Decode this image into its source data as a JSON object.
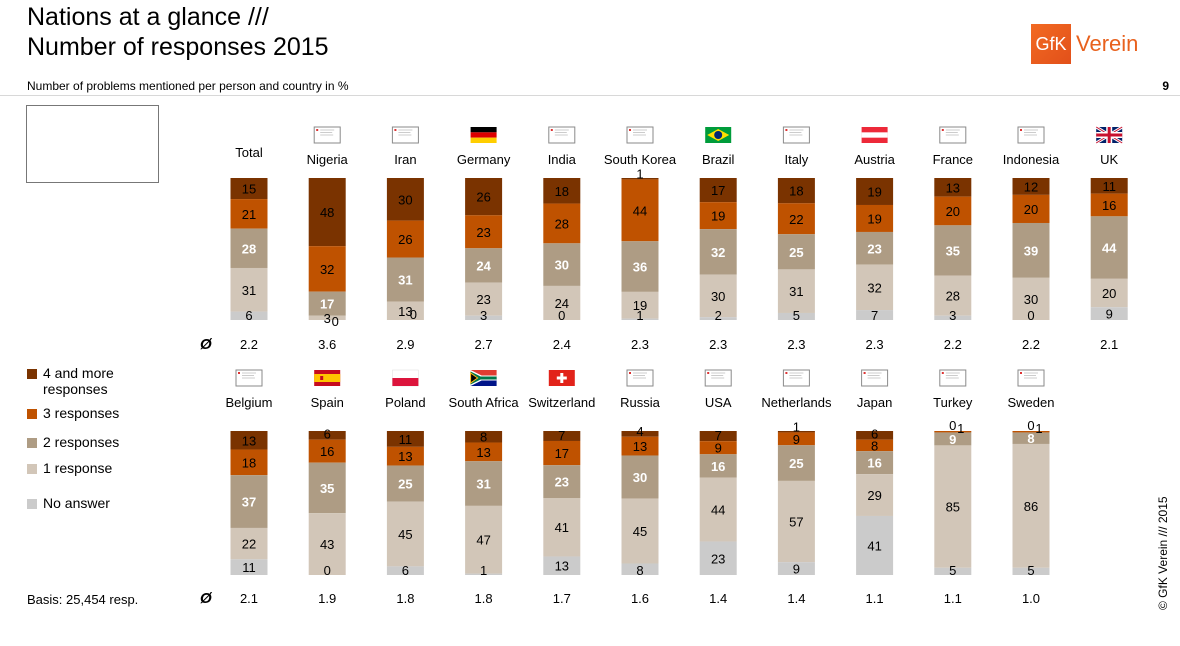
{
  "header": {
    "title_line1": "Nations at a glance ///",
    "title_line2": "Number of responses 2015",
    "subtitle": "Number of problems mentioned per person and country in %",
    "page_number": "9",
    "logo_mark": "GfK",
    "logo_text": "Verein"
  },
  "legend": {
    "items": [
      {
        "label": "4 and more",
        "label2": "responses",
        "color": "#7a3300"
      },
      {
        "label": "3 responses",
        "label2": "",
        "color": "#bf5200"
      },
      {
        "label": "2 responses",
        "label2": "",
        "color": "#ae9c84"
      },
      {
        "label": "1 response",
        "label2": "",
        "color": "#d2c6b8"
      },
      {
        "label": "No answer",
        "label2": "",
        "color": "#cbcbcb"
      }
    ]
  },
  "footer": {
    "basis": "Basis: 25,454 resp.",
    "avg_symbol": "Ø",
    "copyright": "© GfK Verein /// 2015"
  },
  "chart_data": {
    "type": "bar",
    "stacked": true,
    "title": "Number of responses 2015",
    "subtitle": "Number of problems mentioned per person and country in %",
    "unit": "%",
    "series_names": [
      "4 and more responses",
      "3 responses",
      "2 responses",
      "1 response",
      "No answer"
    ],
    "series_colors": [
      "#7a3300",
      "#bf5200",
      "#ae9c84",
      "#d2c6b8",
      "#cbcbcb"
    ],
    "rows": [
      {
        "countries": [
          {
            "name": "Total",
            "flag": "none",
            "values": [
              15,
              21,
              28,
              31,
              6
            ],
            "avg": "2.2"
          },
          {
            "name": "Nigeria",
            "flag": "placeholder",
            "values": [
              48,
              32,
              17,
              3,
              0
            ],
            "avg": "3.6"
          },
          {
            "name": "Iran",
            "flag": "placeholder",
            "values": [
              30,
              26,
              31,
              13,
              0
            ],
            "avg": "2.9"
          },
          {
            "name": "Germany",
            "flag": "germany",
            "values": [
              26,
              23,
              24,
              23,
              3
            ],
            "avg": "2.7"
          },
          {
            "name": "India",
            "flag": "placeholder",
            "values": [
              18,
              28,
              30,
              24,
              0
            ],
            "avg": "2.4"
          },
          {
            "name": "South Korea",
            "flag": "placeholder",
            "values": [
              1,
              44,
              36,
              19,
              1
            ],
            "avg": "2.3"
          },
          {
            "name": "Brazil",
            "flag": "brazil",
            "values": [
              17,
              19,
              32,
              30,
              2
            ],
            "avg": "2.3"
          },
          {
            "name": "Italy",
            "flag": "placeholder",
            "values": [
              18,
              22,
              25,
              31,
              5
            ],
            "avg": "2.3"
          },
          {
            "name": "Austria",
            "flag": "austria",
            "values": [
              19,
              19,
              23,
              32,
              7
            ],
            "avg": "2.3"
          },
          {
            "name": "France",
            "flag": "placeholder",
            "values": [
              13,
              20,
              35,
              28,
              3
            ],
            "avg": "2.2"
          },
          {
            "name": "Indonesia",
            "flag": "placeholder",
            "values": [
              12,
              20,
              39,
              30,
              0
            ],
            "avg": "2.2"
          },
          {
            "name": "UK",
            "flag": "uk",
            "values": [
              11,
              16,
              44,
              20,
              9
            ],
            "avg": "2.1"
          }
        ]
      },
      {
        "countries": [
          {
            "name": "Belgium",
            "flag": "placeholder",
            "values": [
              13,
              18,
              37,
              22,
              11
            ],
            "avg": "2.1"
          },
          {
            "name": "Spain",
            "flag": "spain",
            "values": [
              6,
              16,
              35,
              43,
              0
            ],
            "avg": "1.9"
          },
          {
            "name": "Poland",
            "flag": "poland",
            "values": [
              11,
              13,
              25,
              45,
              6
            ],
            "avg": "1.8"
          },
          {
            "name": "South Africa",
            "flag": "southafrica",
            "values": [
              8,
              13,
              31,
              47,
              1
            ],
            "avg": "1.8"
          },
          {
            "name": "Switzerland",
            "flag": "switzerland",
            "values": [
              7,
              17,
              23,
              41,
              13
            ],
            "avg": "1.7"
          },
          {
            "name": "Russia",
            "flag": "placeholder",
            "values": [
              4,
              13,
              30,
              45,
              8
            ],
            "avg": "1.6"
          },
          {
            "name": "USA",
            "flag": "placeholder",
            "values": [
              7,
              9,
              16,
              44,
              23
            ],
            "avg": "1.4"
          },
          {
            "name": "Netherlands",
            "flag": "placeholder",
            "values": [
              1,
              9,
              25,
              57,
              9
            ],
            "avg": "1.4"
          },
          {
            "name": "Japan",
            "flag": "placeholder",
            "values": [
              6,
              8,
              16,
              29,
              41
            ],
            "avg": "1.1"
          },
          {
            "name": "Turkey",
            "flag": "placeholder",
            "values": [
              0,
              1,
              9,
              85,
              5
            ],
            "avg": "1.1"
          },
          {
            "name": "Sweden",
            "flag": "placeholder",
            "values": [
              0,
              1,
              8,
              86,
              5
            ],
            "avg": "1.0"
          }
        ]
      }
    ]
  }
}
